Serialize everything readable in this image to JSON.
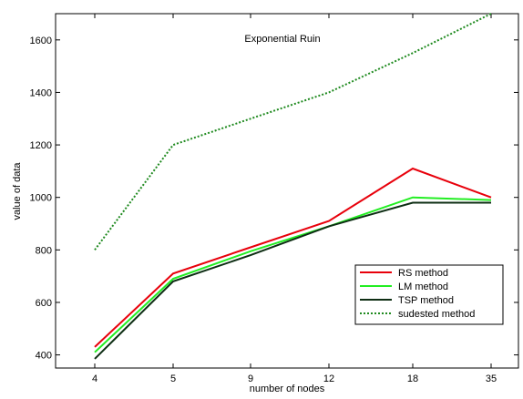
{
  "chart_data": {
    "type": "line",
    "title": "Exponential Ruin",
    "xlabel": "number of nodes",
    "ylabel": "value of data",
    "categories": [
      "4",
      "5",
      "9",
      "12",
      "18",
      "35"
    ],
    "ylim": [
      350,
      1700
    ],
    "yticks": [
      400,
      600,
      800,
      1000,
      1200,
      1400,
      1600
    ],
    "grid": false,
    "legend_position": "lower-right",
    "series": [
      {
        "name": "RS method",
        "color": "#e8000b",
        "style": "solid",
        "values": [
          430,
          710,
          810,
          910,
          1110,
          1000
        ]
      },
      {
        "name": "LM method",
        "color": "#22ee22",
        "style": "solid",
        "values": [
          410,
          690,
          795,
          890,
          1000,
          990
        ]
      },
      {
        "name": "TSP method",
        "color": "#0e2e14",
        "style": "solid",
        "values": [
          385,
          680,
          780,
          890,
          980,
          980
        ]
      },
      {
        "name": "sudested method",
        "color": "#1f8a1f",
        "style": "dotted",
        "values": [
          800,
          1200,
          1300,
          1400,
          1550,
          1700
        ]
      }
    ]
  }
}
